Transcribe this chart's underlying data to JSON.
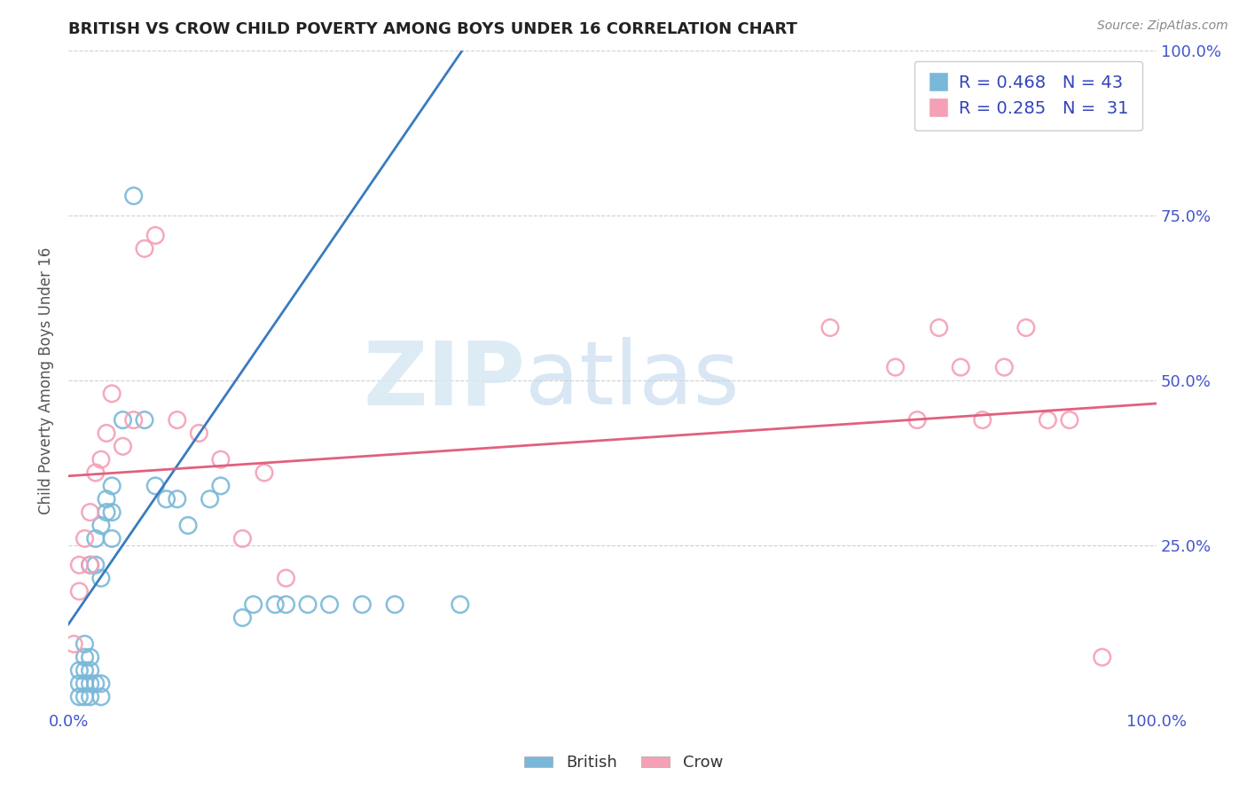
{
  "title": "BRITISH VS CROW CHILD POVERTY AMONG BOYS UNDER 16 CORRELATION CHART",
  "source": "Source: ZipAtlas.com",
  "ylabel": "Child Poverty Among Boys Under 16",
  "watermark_zip": "ZIP",
  "watermark_atlas": "atlas",
  "british_R": 0.468,
  "british_N": 43,
  "crow_R": 0.285,
  "crow_N": 31,
  "xlim": [
    0.0,
    1.0
  ],
  "ylim": [
    0.0,
    1.0
  ],
  "british_color": "#7ab8d9",
  "crow_color": "#f4a0b5",
  "british_line_color": "#3a7bbf",
  "crow_line_color": "#e06080",
  "background_color": "#ffffff",
  "grid_color": "#d0d0d0",
  "title_color": "#222222",
  "tick_color": "#4455cc",
  "legend_label_color": "#3344bb",
  "british_x": [
    0.01,
    0.01,
    0.01,
    0.015,
    0.015,
    0.015,
    0.015,
    0.015,
    0.02,
    0.02,
    0.02,
    0.02,
    0.02,
    0.025,
    0.025,
    0.025,
    0.03,
    0.03,
    0.03,
    0.03,
    0.035,
    0.035,
    0.04,
    0.04,
    0.04,
    0.05,
    0.06,
    0.07,
    0.08,
    0.09,
    0.1,
    0.11,
    0.13,
    0.14,
    0.16,
    0.17,
    0.19,
    0.2,
    0.22,
    0.24,
    0.27,
    0.3,
    0.36
  ],
  "british_y": [
    0.02,
    0.04,
    0.06,
    0.02,
    0.04,
    0.06,
    0.08,
    0.1,
    0.02,
    0.04,
    0.06,
    0.08,
    0.22,
    0.04,
    0.22,
    0.26,
    0.02,
    0.04,
    0.2,
    0.28,
    0.3,
    0.32,
    0.26,
    0.3,
    0.34,
    0.44,
    0.78,
    0.44,
    0.34,
    0.32,
    0.32,
    0.28,
    0.32,
    0.34,
    0.14,
    0.16,
    0.16,
    0.16,
    0.16,
    0.16,
    0.16,
    0.16,
    0.16
  ],
  "crow_x": [
    0.005,
    0.01,
    0.01,
    0.015,
    0.02,
    0.02,
    0.025,
    0.03,
    0.035,
    0.04,
    0.05,
    0.06,
    0.07,
    0.08,
    0.1,
    0.12,
    0.14,
    0.16,
    0.18,
    0.2,
    0.7,
    0.76,
    0.78,
    0.8,
    0.82,
    0.84,
    0.86,
    0.88,
    0.9,
    0.92,
    0.95
  ],
  "crow_y": [
    0.1,
    0.18,
    0.22,
    0.26,
    0.22,
    0.3,
    0.36,
    0.38,
    0.42,
    0.48,
    0.4,
    0.44,
    0.7,
    0.72,
    0.44,
    0.42,
    0.38,
    0.26,
    0.36,
    0.2,
    0.58,
    0.52,
    0.44,
    0.58,
    0.52,
    0.44,
    0.52,
    0.58,
    0.44,
    0.44,
    0.08
  ]
}
